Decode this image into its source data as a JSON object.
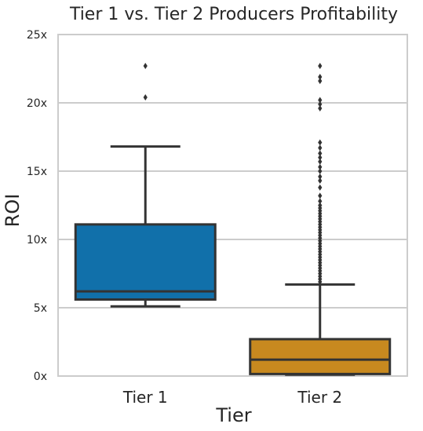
{
  "chart_data": {
    "type": "box",
    "title": "Tier 1 vs. Tier 2 Producers Profitability",
    "xlabel": "Tier",
    "ylabel": "ROI",
    "ylim": [
      0,
      25
    ],
    "yticks": [
      0,
      5,
      10,
      15,
      20,
      25
    ],
    "ytick_labels": [
      "0x",
      "5x",
      "10x",
      "15x",
      "20x",
      "25x"
    ],
    "grid": "horizontal",
    "categories": [
      "Tier 1",
      "Tier 2"
    ],
    "boxes": [
      {
        "name": "Tier 1",
        "color": "#1170aa",
        "whisker_low": 5.1,
        "q1": 5.6,
        "median": 6.2,
        "q3": 11.1,
        "whisker_high": 16.8,
        "outliers": [
          20.4,
          22.7
        ]
      },
      {
        "name": "Tier 2",
        "color": "#c8891f",
        "whisker_low": 0.1,
        "q1": 0.15,
        "median": 1.2,
        "q3": 2.7,
        "whisker_high": 6.7,
        "outliers": [
          6.9,
          7.1,
          7.3,
          7.5,
          7.7,
          7.9,
          8.1,
          8.3,
          8.5,
          8.7,
          8.9,
          9.1,
          9.3,
          9.5,
          9.7,
          9.9,
          10.1,
          10.3,
          10.5,
          10.7,
          10.9,
          11.1,
          11.3,
          11.5,
          11.7,
          11.9,
          12.1,
          12.3,
          12.5,
          12.8,
          13.2,
          13.8,
          14.3,
          14.6,
          15.0,
          15.3,
          15.7,
          16.0,
          16.3,
          16.7,
          17.1,
          19.6,
          19.9,
          20.2,
          21.6,
          21.9,
          22.7
        ]
      }
    ]
  }
}
